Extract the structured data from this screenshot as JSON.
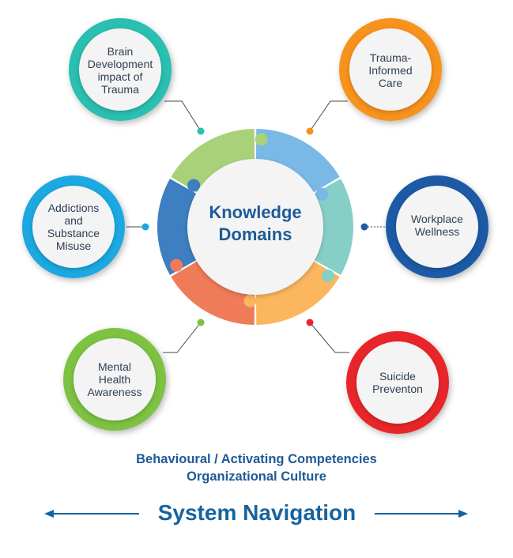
{
  "center": {
    "line1": "Knowledge",
    "line2": "Domains"
  },
  "domains": [
    {
      "lines": [
        "Brain",
        "Development",
        "impact of",
        "Trauma"
      ],
      "color": "#2bbfb0"
    },
    {
      "lines": [
        "Trauma-",
        "Informed",
        "Care"
      ],
      "color": "#f7921e"
    },
    {
      "lines": [
        "Addictions",
        "and",
        "Substance",
        "Misuse"
      ],
      "color": "#1ea8e0"
    },
    {
      "lines": [
        "Workplace",
        "Wellness"
      ],
      "color": "#1f5aa6"
    },
    {
      "lines": [
        "Mental",
        "Health",
        "Awareness"
      ],
      "color": "#7dc242"
    },
    {
      "lines": [
        "Suicide",
        "Preventon"
      ],
      "color": "#e8262a"
    }
  ],
  "ring_colors": {
    "top_right": "#7ab8e6",
    "right": "#86cfc7",
    "bottom_right": "#fbb65e",
    "bottom_left": "#f07b58",
    "left": "#3d7fc0",
    "top_left": "#a9d17a"
  },
  "footer": {
    "line1": "Behavioural / Activating Competencies",
    "line2": "Organizational Culture",
    "navigation": "System Navigation"
  },
  "colors": {
    "title_blue": "#1e5a96",
    "arrow_blue": "#17639e"
  }
}
